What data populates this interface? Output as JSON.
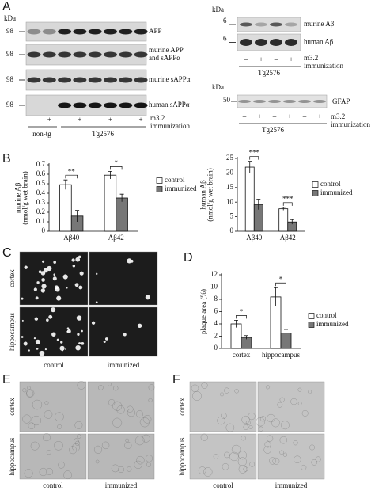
{
  "panel_a": {
    "label": "A",
    "left": {
      "kda": "kDa",
      "markers": [
        "98",
        "98",
        "98",
        "98"
      ],
      "blot_labels": [
        [
          "APP"
        ],
        [
          "murine APP",
          "and sAPPα"
        ],
        [
          "murine sAPPα"
        ],
        [
          "human sAPPα"
        ]
      ],
      "signs": [
        "–",
        "+",
        "–",
        "+",
        "–",
        "+",
        "–",
        "+"
      ],
      "groups": [
        "non-tg",
        "Tg2576"
      ],
      "treatment": [
        "m3.2",
        "immunization"
      ]
    },
    "right_top": {
      "kda": "kDa",
      "markers": [
        "6",
        "6"
      ],
      "blot_labels": [
        "murine Aβ",
        "human Aβ"
      ],
      "signs": [
        "–",
        "+",
        "–",
        "+"
      ],
      "group": "Tg2576",
      "treatment": [
        "m3.2",
        "immunization"
      ]
    },
    "right_bottom": {
      "kda": "kDa",
      "marker": "50",
      "blot_label": "GFAP",
      "signs": [
        "–",
        "+",
        "–",
        "+",
        "–",
        "+"
      ],
      "group": "Tg2576",
      "treatment": [
        "m3.2",
        "immunization"
      ]
    }
  },
  "panel_b": {
    "label": "B"
  },
  "chart_data": [
    {
      "type": "bar",
      "ylabel": [
        "murine Aβ",
        "(nmol/g wet brain)"
      ],
      "categories": [
        "Aβ40",
        "Aβ42"
      ],
      "series": [
        {
          "name": "control",
          "color": "#ffffff",
          "values": [
            0.49,
            0.59
          ],
          "errors": [
            0.05,
            0.04
          ]
        },
        {
          "name": "immunized",
          "color": "#777777",
          "values": [
            0.16,
            0.35
          ],
          "errors": [
            0.06,
            0.04
          ]
        }
      ],
      "annotations": [
        "**",
        "*"
      ],
      "ylim": [
        0,
        0.7
      ],
      "yticks": [
        0,
        0.1,
        0.2,
        0.3,
        0.4,
        0.5,
        0.6,
        0.7
      ],
      "legend": "right"
    },
    {
      "type": "bar",
      "ylabel": [
        "human Aβ",
        "(nmol/g wet brain)"
      ],
      "categories": [
        "Aβ40",
        "Aβ42"
      ],
      "series": [
        {
          "name": "control",
          "color": "#ffffff",
          "values": [
            22,
            7.7
          ],
          "errors": [
            2,
            0.5
          ]
        },
        {
          "name": "immunized",
          "color": "#777777",
          "values": [
            9.2,
            3.2
          ],
          "errors": [
            1.8,
            0.8
          ]
        }
      ],
      "annotations": [
        "***",
        "***"
      ],
      "ylim": [
        0,
        25
      ],
      "yticks": [
        0,
        5,
        10,
        15,
        20,
        25
      ],
      "legend": "right"
    },
    {
      "type": "bar",
      "panel_label": "D",
      "ylabel": [
        "plaque area (%)"
      ],
      "categories": [
        "cortex",
        "hippocampus"
      ],
      "series": [
        {
          "name": "control",
          "color": "#ffffff",
          "values": [
            4,
            8.4
          ],
          "errors": [
            0.6,
            1.5
          ]
        },
        {
          "name": "immunized",
          "color": "#777777",
          "values": [
            1.8,
            2.5
          ],
          "errors": [
            0.3,
            0.6
          ]
        }
      ],
      "annotations": [
        "*",
        "*"
      ],
      "ylim": [
        0,
        12
      ],
      "yticks": [
        0,
        2,
        4,
        6,
        8,
        10,
        12
      ],
      "legend": "right"
    }
  ],
  "panel_c": {
    "label": "C",
    "rows": [
      "cortex",
      "hippocampus"
    ],
    "columns": [
      "control",
      "immunized"
    ]
  },
  "panel_e": {
    "label": "E",
    "rows": [
      "cortex",
      "hippocampus"
    ],
    "columns": [
      "control",
      "immunized"
    ]
  },
  "panel_f": {
    "label": "F",
    "rows": [
      "cortex",
      "hippocampus"
    ],
    "columns": [
      "control",
      "immunized"
    ]
  }
}
